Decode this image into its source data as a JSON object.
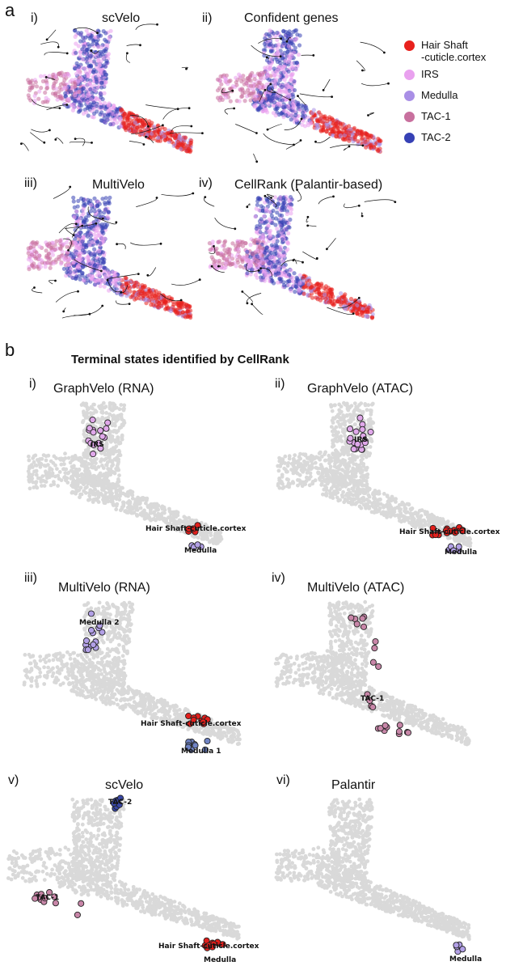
{
  "figure": {
    "panel_a": {
      "letter": "a",
      "subpanels": [
        {
          "roman": "i)",
          "title": "scVelo"
        },
        {
          "roman": "ii)",
          "title": "Confident genes"
        },
        {
          "roman": "iii)",
          "title": "MultiVelo"
        },
        {
          "roman": "iv)",
          "title": "CellRank (Palantir-based)"
        }
      ],
      "legend": [
        {
          "label": "Hair Shaft\n-cuticle.cortex",
          "color": "#e8211d"
        },
        {
          "label": "IRS",
          "color": "#e9a1ef"
        },
        {
          "label": "Medulla",
          "color": "#a98fe6"
        },
        {
          "label": "TAC-1",
          "color": "#c8709e"
        },
        {
          "label": "TAC-2",
          "color": "#3641b5"
        }
      ]
    },
    "panel_b": {
      "letter": "b",
      "title": "Terminal states identified by CellRank",
      "subpanels": [
        {
          "roman": "i)",
          "title": "GraphVelo (RNA)",
          "states": [
            {
              "label": "IRS",
              "type": "IRS"
            },
            {
              "label": "Hair Shaft-cuticle.cortex",
              "type": "HS"
            },
            {
              "label": "Medulla",
              "type": "Medulla"
            }
          ]
        },
        {
          "roman": "ii)",
          "title": "GraphVelo (ATAC)",
          "states": [
            {
              "label": "IRS",
              "type": "IRS"
            },
            {
              "label": "Hair Shaft-cuticle.cortex",
              "type": "HS"
            },
            {
              "label": "Medulla",
              "type": "Medulla"
            }
          ]
        },
        {
          "roman": "iii)",
          "title": "MultiVelo (RNA)",
          "states": [
            {
              "label": "Medulla 2",
              "type": "Medulla"
            },
            {
              "label": "Hair Shaft-cuticle.cortex",
              "type": "HS"
            },
            {
              "label": "Medulla 1",
              "type": "Medulla1"
            }
          ]
        },
        {
          "roman": "iv)",
          "title": "MultiVelo (ATAC)",
          "states": [
            {
              "label": "TAC-1",
              "type": "TAC1"
            }
          ]
        },
        {
          "roman": "v)",
          "title": "scVelo",
          "states": [
            {
              "label": "TAC-2",
              "type": "TAC2"
            },
            {
              "label": "TAC-1",
              "type": "TAC1"
            },
            {
              "label": "Hair Shaft-cuticle.cortex",
              "type": "HS"
            },
            {
              "label": "Medulla",
              "type": "Medulla"
            }
          ]
        },
        {
          "roman": "vi)",
          "title": "Palantir",
          "states": [
            {
              "label": "Medulla",
              "type": "Medulla"
            }
          ]
        }
      ]
    }
  },
  "chart_data": [
    {
      "type": "scatter",
      "title": "scVelo",
      "series": [
        {
          "name": "Hair Shaft-cuticle.cortex"
        },
        {
          "name": "IRS"
        },
        {
          "name": "Medulla"
        },
        {
          "name": "TAC-1"
        },
        {
          "name": "TAC-2"
        }
      ]
    },
    {
      "type": "scatter",
      "title": "Confident genes",
      "series": [
        {
          "name": "Hair Shaft-cuticle.cortex"
        },
        {
          "name": "IRS"
        },
        {
          "name": "Medulla"
        },
        {
          "name": "TAC-1"
        },
        {
          "name": "TAC-2"
        }
      ]
    },
    {
      "type": "scatter",
      "title": "MultiVelo",
      "series": [
        {
          "name": "Hair Shaft-cuticle.cortex"
        },
        {
          "name": "IRS"
        },
        {
          "name": "Medulla"
        },
        {
          "name": "TAC-1"
        },
        {
          "name": "TAC-2"
        }
      ]
    },
    {
      "type": "scatter",
      "title": "CellRank (Palantir-based)",
      "series": [
        {
          "name": "Hair Shaft-cuticle.cortex"
        },
        {
          "name": "IRS"
        },
        {
          "name": "Medulla"
        },
        {
          "name": "TAC-1"
        },
        {
          "name": "TAC-2"
        }
      ]
    },
    {
      "type": "scatter",
      "title": "GraphVelo (RNA)",
      "annotations": [
        "IRS",
        "Hair Shaft-cuticle.cortex",
        "Medulla"
      ]
    },
    {
      "type": "scatter",
      "title": "GraphVelo (ATAC)",
      "annotations": [
        "IRS",
        "Hair Shaft-cuticle.cortex",
        "Medulla"
      ]
    },
    {
      "type": "scatter",
      "title": "MultiVelo (RNA)",
      "annotations": [
        "Medulla 2",
        "Hair Shaft-cuticle.cortex",
        "Medulla 1"
      ]
    },
    {
      "type": "scatter",
      "title": "MultiVelo (ATAC)",
      "annotations": [
        "TAC-1"
      ]
    },
    {
      "type": "scatter",
      "title": "scVelo",
      "annotations": [
        "TAC-2",
        "TAC-1",
        "Hair Shaft-cuticle.cortex",
        "Medulla"
      ]
    },
    {
      "type": "scatter",
      "title": "Palantir",
      "annotations": [
        "Medulla"
      ]
    }
  ]
}
